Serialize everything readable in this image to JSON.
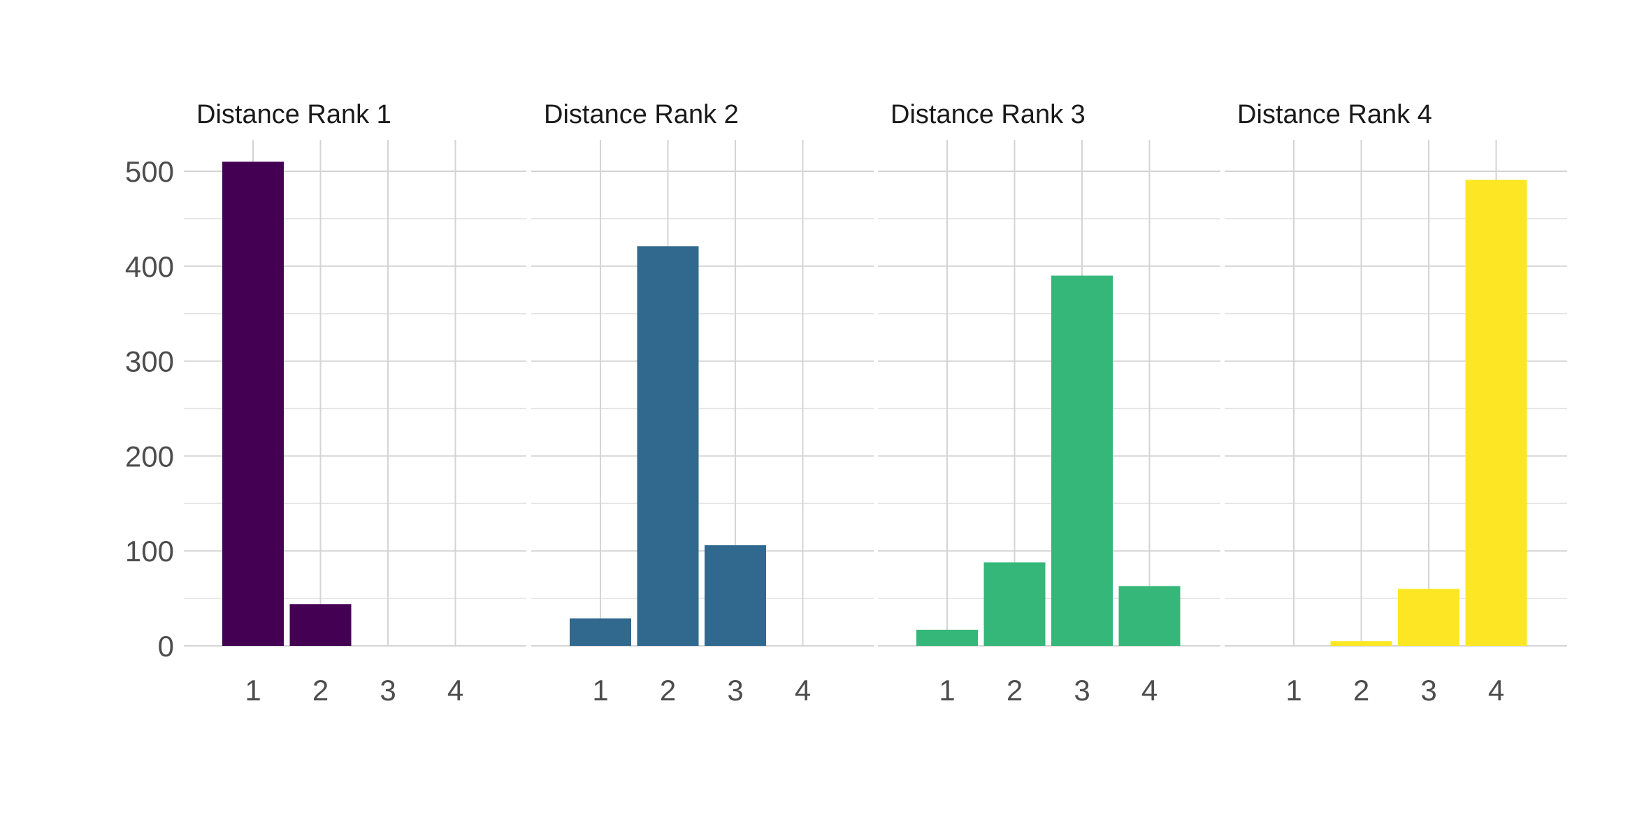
{
  "chart_data": {
    "type": "bar",
    "layout": "faceted",
    "categories": [
      "1",
      "2",
      "3",
      "4"
    ],
    "ylim": [
      0,
      530
    ],
    "yticks": [
      0,
      100,
      200,
      300,
      400,
      500
    ],
    "grid": true,
    "legend": "none",
    "facets": [
      {
        "title": "Distance Rank 1",
        "color": "#440154",
        "values": [
          510,
          44,
          0,
          0
        ]
      },
      {
        "title": "Distance Rank 2",
        "color": "#31688E",
        "values": [
          29,
          421,
          106,
          0
        ]
      },
      {
        "title": "Distance Rank 3",
        "color": "#35B779",
        "values": [
          17,
          88,
          390,
          63
        ]
      },
      {
        "title": "Distance Rank 4",
        "color": "#FDE725",
        "values": [
          0,
          5,
          60,
          491
        ]
      }
    ]
  }
}
